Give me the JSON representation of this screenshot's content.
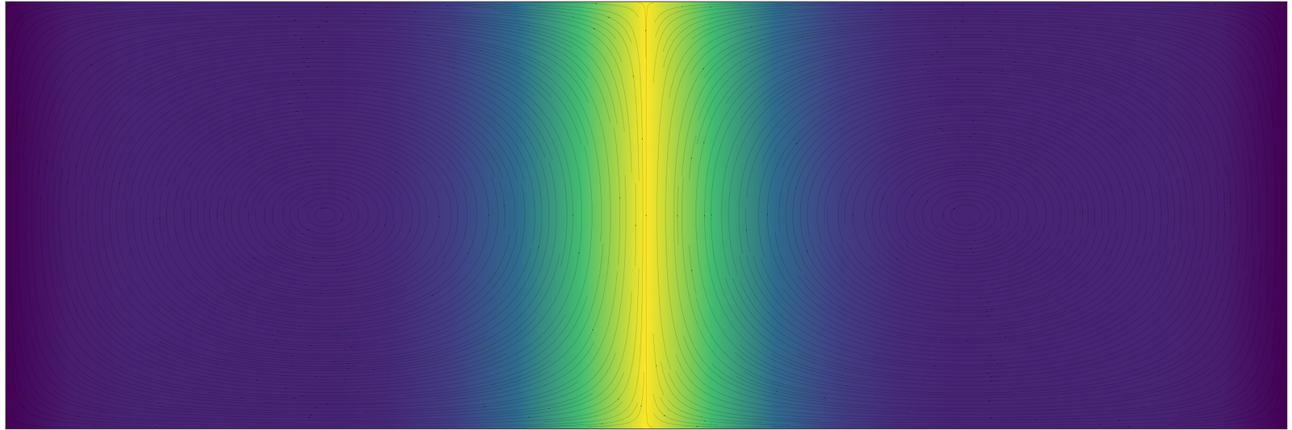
{
  "chart_data": {
    "type": "vector_field",
    "xlim": [
      0,
      1
    ],
    "ylim": [
      0,
      1
    ],
    "tick_labels": false,
    "color": "viridis",
    "color_range": [
      0,
      1
    ],
    "cells_x": [
      0.0,
      0.05,
      0.1,
      0.15,
      0.2,
      0.25,
      0.3,
      0.35,
      0.4,
      0.45,
      0.5,
      0.55,
      0.6,
      0.65,
      0.7,
      0.75,
      0.8,
      0.85,
      0.9,
      0.95,
      1.0
    ],
    "cells_y": [
      0.0,
      1.0
    ],
    "cells": [
      [
        0.0,
        0.08,
        0.1,
        0.1,
        0.1,
        0.1,
        0.12,
        0.18,
        0.35,
        0.7,
        1.0,
        0.7,
        0.35,
        0.18,
        0.12,
        0.1,
        0.1,
        0.1,
        0.1,
        0.08,
        0.0
      ],
      [
        0.0,
        0.08,
        0.1,
        0.1,
        0.1,
        0.1,
        0.12,
        0.18,
        0.35,
        0.7,
        1.0,
        0.7,
        0.35,
        0.18,
        0.12,
        0.1,
        0.1,
        0.1,
        0.1,
        0.08,
        0.0
      ]
    ],
    "vector_x": [
      0.0,
      0.125,
      0.25,
      0.375,
      0.5,
      0.625,
      0.75,
      0.875,
      1.0
    ],
    "vector_y": [
      0.0,
      0.25,
      0.5,
      0.75,
      1.0
    ],
    "u": [
      [
        0,
        0.71,
        1,
        0.71,
        0,
        -0.71,
        -1,
        -0.71,
        0
      ],
      [
        0,
        0.5,
        0.71,
        0.5,
        0,
        -0.5,
        -0.71,
        -0.5,
        0
      ],
      [
        0,
        0,
        0,
        0,
        0,
        0,
        0,
        0,
        0
      ],
      [
        0,
        -0.5,
        -0.71,
        -0.5,
        0,
        0.5,
        0.71,
        0.5,
        0
      ],
      [
        0,
        -0.71,
        -1,
        -0.71,
        0,
        0.71,
        1,
        0.71,
        0
      ]
    ],
    "v": [
      [
        0,
        0,
        0,
        0,
        0,
        0,
        0,
        0,
        0
      ],
      [
        -1.41,
        -1,
        0,
        1,
        1.41,
        1,
        0,
        -1,
        -1.41
      ],
      [
        -2,
        -1.41,
        0,
        1.41,
        2,
        1.41,
        0,
        -1.41,
        -2
      ],
      [
        -1.41,
        -1,
        0,
        1,
        1.41,
        1,
        0,
        -1,
        -1.41
      ],
      [
        0,
        0,
        0,
        0,
        0,
        0,
        0,
        0,
        0
      ]
    ]
  }
}
